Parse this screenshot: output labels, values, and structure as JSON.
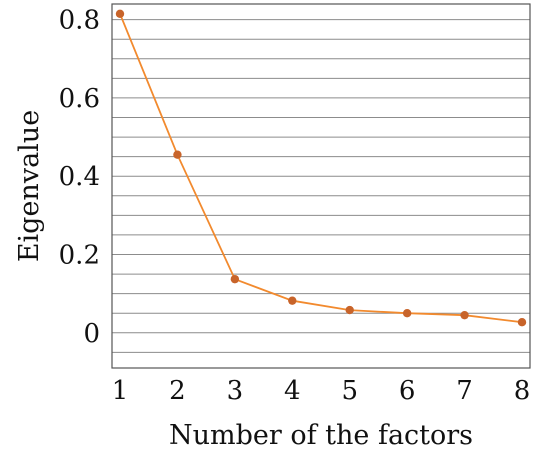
{
  "chart_data": {
    "type": "line",
    "title": "",
    "xlabel": "Number of the factors",
    "ylabel": "Eigenvalue",
    "x": [
      1,
      2,
      3,
      4,
      5,
      6,
      7,
      8
    ],
    "xlim": [
      1,
      8
    ],
    "ylim": [
      -0.09,
      0.84
    ],
    "y_ticks": [
      0,
      0.2,
      0.4,
      0.6,
      0.8
    ],
    "y_tick_labels": [
      "0",
      "0.2",
      "0.4",
      "0.6",
      "0.8"
    ],
    "x_tick_labels": [
      "1",
      "2",
      "3",
      "4",
      "5",
      "6",
      "7",
      "8"
    ],
    "gridlines_y": [
      -0.05,
      0,
      0.05,
      0.1,
      0.15,
      0.2,
      0.25,
      0.3,
      0.35,
      0.4,
      0.45,
      0.5,
      0.55,
      0.6,
      0.65,
      0.7,
      0.75,
      0.8
    ],
    "grid": true,
    "series": [
      {
        "values": [
          0.815,
          0.455,
          0.137,
          0.082,
          0.058,
          0.05,
          0.045,
          0.027
        ],
        "color": "#f28a2e",
        "marker_color": "#c8642a"
      }
    ]
  }
}
